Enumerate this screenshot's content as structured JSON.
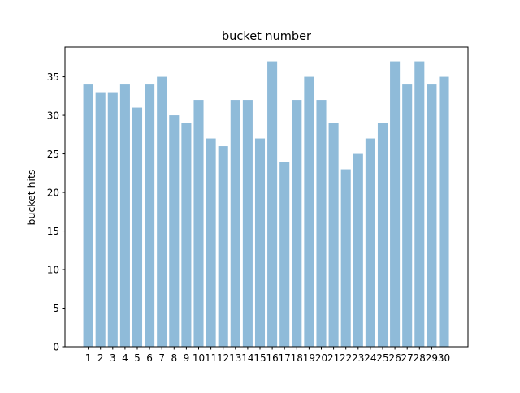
{
  "chart_data": {
    "type": "bar",
    "title": "bucket number",
    "xlabel": "",
    "ylabel": "bucket hits",
    "categories": [
      "1",
      "2",
      "3",
      "4",
      "5",
      "6",
      "7",
      "8",
      "9",
      "10",
      "11",
      "12",
      "13",
      "14",
      "15",
      "16",
      "17",
      "18",
      "19",
      "20",
      "21",
      "22",
      "23",
      "24",
      "25",
      "26",
      "27",
      "28",
      "29",
      "30"
    ],
    "values": [
      34,
      33,
      33,
      34,
      31,
      34,
      35,
      30,
      29,
      32,
      27,
      26,
      32,
      32,
      27,
      37,
      24,
      32,
      35,
      32,
      29,
      23,
      25,
      27,
      29,
      37,
      34,
      37,
      34,
      35
    ],
    "ylim": [
      0,
      38.85
    ],
    "yticks": [
      0,
      5,
      10,
      15,
      20,
      25,
      30,
      35
    ],
    "bar_color": "#1f77b4",
    "bar_alpha": 0.5,
    "grid": false,
    "legend": "none"
  }
}
